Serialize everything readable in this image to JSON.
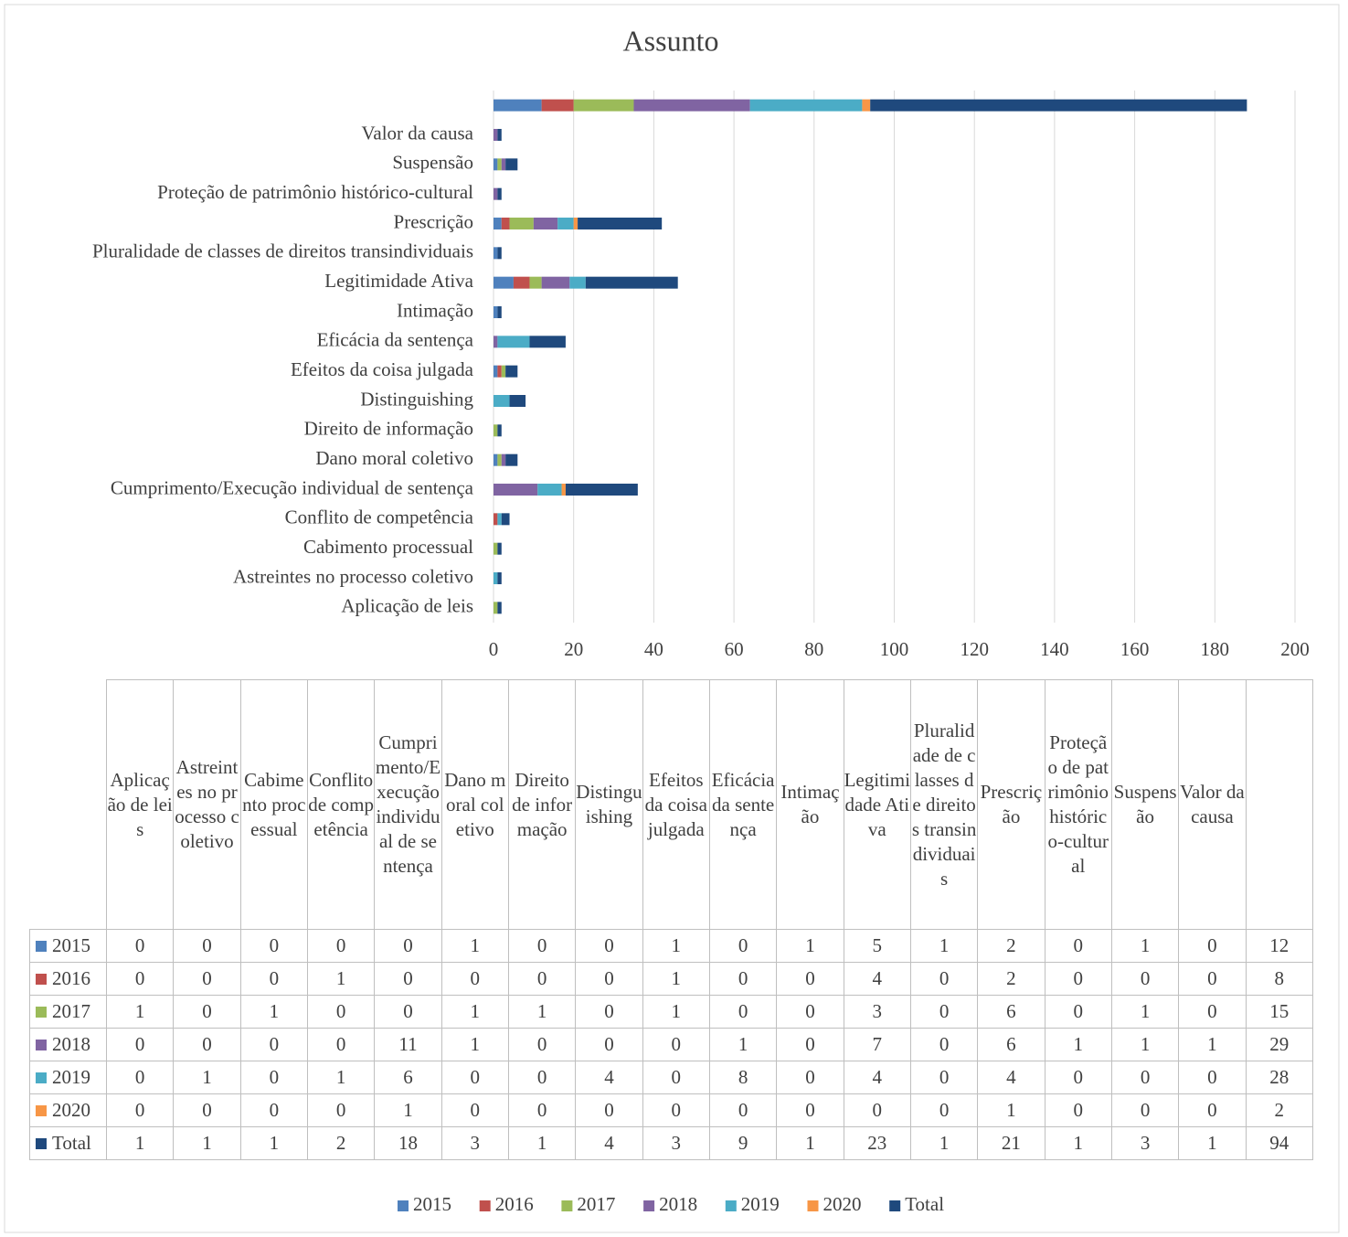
{
  "chart_data": {
    "type": "stacked_barh",
    "title": "Assunto",
    "categories": [
      "Aplicação de leis",
      "Astreintes no processo coletivo",
      "Cabimento processual",
      "Conflito de competência",
      "Cumprimento/Execução individual de sentença",
      "Dano moral coletivo",
      "Direito de informação",
      "Distinguishing",
      "Efeitos da coisa julgada",
      "Eficácia da sentença",
      "Intimação",
      "Legitimidade Ativa",
      "Pluralidade de classes de direitos transindividuais",
      "Prescrição",
      "Proteção de patrimônio histórico-cultural",
      "Suspensão",
      "Valor da causa",
      null
    ],
    "series": [
      {
        "name": "2015",
        "color": "#4f81bd",
        "values": [
          0,
          0,
          0,
          0,
          0,
          1,
          0,
          0,
          1,
          0,
          1,
          5,
          1,
          2,
          0,
          1,
          0,
          12
        ]
      },
      {
        "name": "2016",
        "color": "#c0504d",
        "values": [
          0,
          0,
          0,
          1,
          0,
          0,
          0,
          0,
          1,
          0,
          0,
          4,
          0,
          2,
          0,
          0,
          0,
          8
        ]
      },
      {
        "name": "2017",
        "color": "#9bbb59",
        "values": [
          1,
          0,
          1,
          0,
          0,
          1,
          1,
          0,
          1,
          0,
          0,
          3,
          0,
          6,
          0,
          1,
          0,
          15
        ]
      },
      {
        "name": "2018",
        "color": "#8064a2",
        "values": [
          0,
          0,
          0,
          0,
          11,
          1,
          0,
          0,
          0,
          1,
          0,
          7,
          0,
          6,
          1,
          1,
          1,
          29
        ]
      },
      {
        "name": "2019",
        "color": "#4bacc6",
        "values": [
          0,
          1,
          0,
          1,
          6,
          0,
          0,
          4,
          0,
          8,
          0,
          4,
          0,
          4,
          0,
          0,
          0,
          28
        ]
      },
      {
        "name": "2020",
        "color": "#f79646",
        "values": [
          0,
          0,
          0,
          0,
          1,
          0,
          0,
          0,
          0,
          0,
          0,
          0,
          0,
          1,
          0,
          0,
          0,
          2
        ]
      },
      {
        "name": "Total",
        "color": "#1f497d",
        "values": [
          1,
          1,
          1,
          2,
          18,
          3,
          1,
          4,
          3,
          9,
          1,
          23,
          1,
          21,
          1,
          3,
          1,
          94
        ]
      }
    ],
    "xlim": [
      0,
      200
    ],
    "xticks": [
      0,
      20,
      40,
      60,
      80,
      100,
      120,
      140,
      160,
      180,
      200
    ],
    "grid": true,
    "legend": "bottom"
  }
}
